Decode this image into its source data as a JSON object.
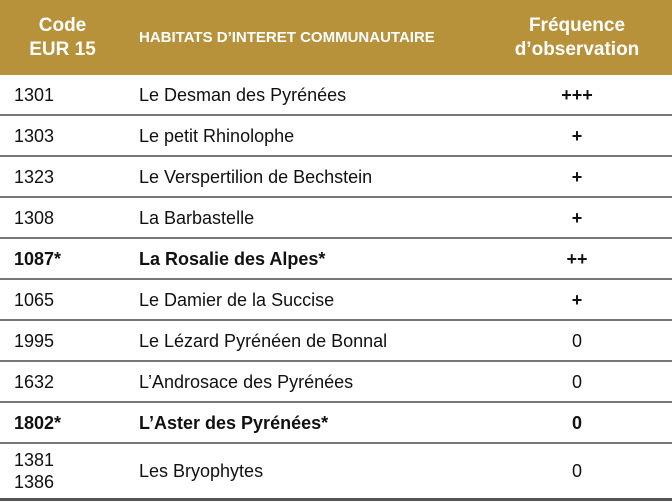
{
  "table": {
    "header": [
      "Code\nEUR 15",
      "HABITATS D’INTERET COMMUNAUTAIRE",
      "Fréquence\nd’observation"
    ],
    "rows": [
      {
        "cells": [
          "1301",
          "Le Desman des Pyrénées",
          "+++"
        ],
        "bold": false
      },
      {
        "cells": [
          "1303",
          "Le petit Rhinolophe",
          "+"
        ],
        "bold": false
      },
      {
        "cells": [
          "1323",
          "Le Verspertilion de Bechstein",
          "+"
        ],
        "bold": false
      },
      {
        "cells": [
          "1308",
          "La Barbastelle",
          "+"
        ],
        "bold": false
      },
      {
        "cells": [
          "1087*",
          "La Rosalie des Alpes*",
          "++"
        ],
        "bold": true
      },
      {
        "cells": [
          "1065",
          "Le Damier de la Succise",
          "+"
        ],
        "bold": false
      },
      {
        "cells": [
          "1995",
          "Le Lézard Pyrénéen de Bonnal",
          "0"
        ],
        "bold": false
      },
      {
        "cells": [
          "1632",
          "L’Androsace des Pyrénées",
          "0"
        ],
        "bold": false
      },
      {
        "cells": [
          "1802*",
          "L’Aster des Pyrénées*",
          "0"
        ],
        "bold": true
      },
      {
        "cells": [
          "1381\n1386",
          "Les Bryophytes",
          "0"
        ],
        "bold": false
      }
    ]
  }
}
